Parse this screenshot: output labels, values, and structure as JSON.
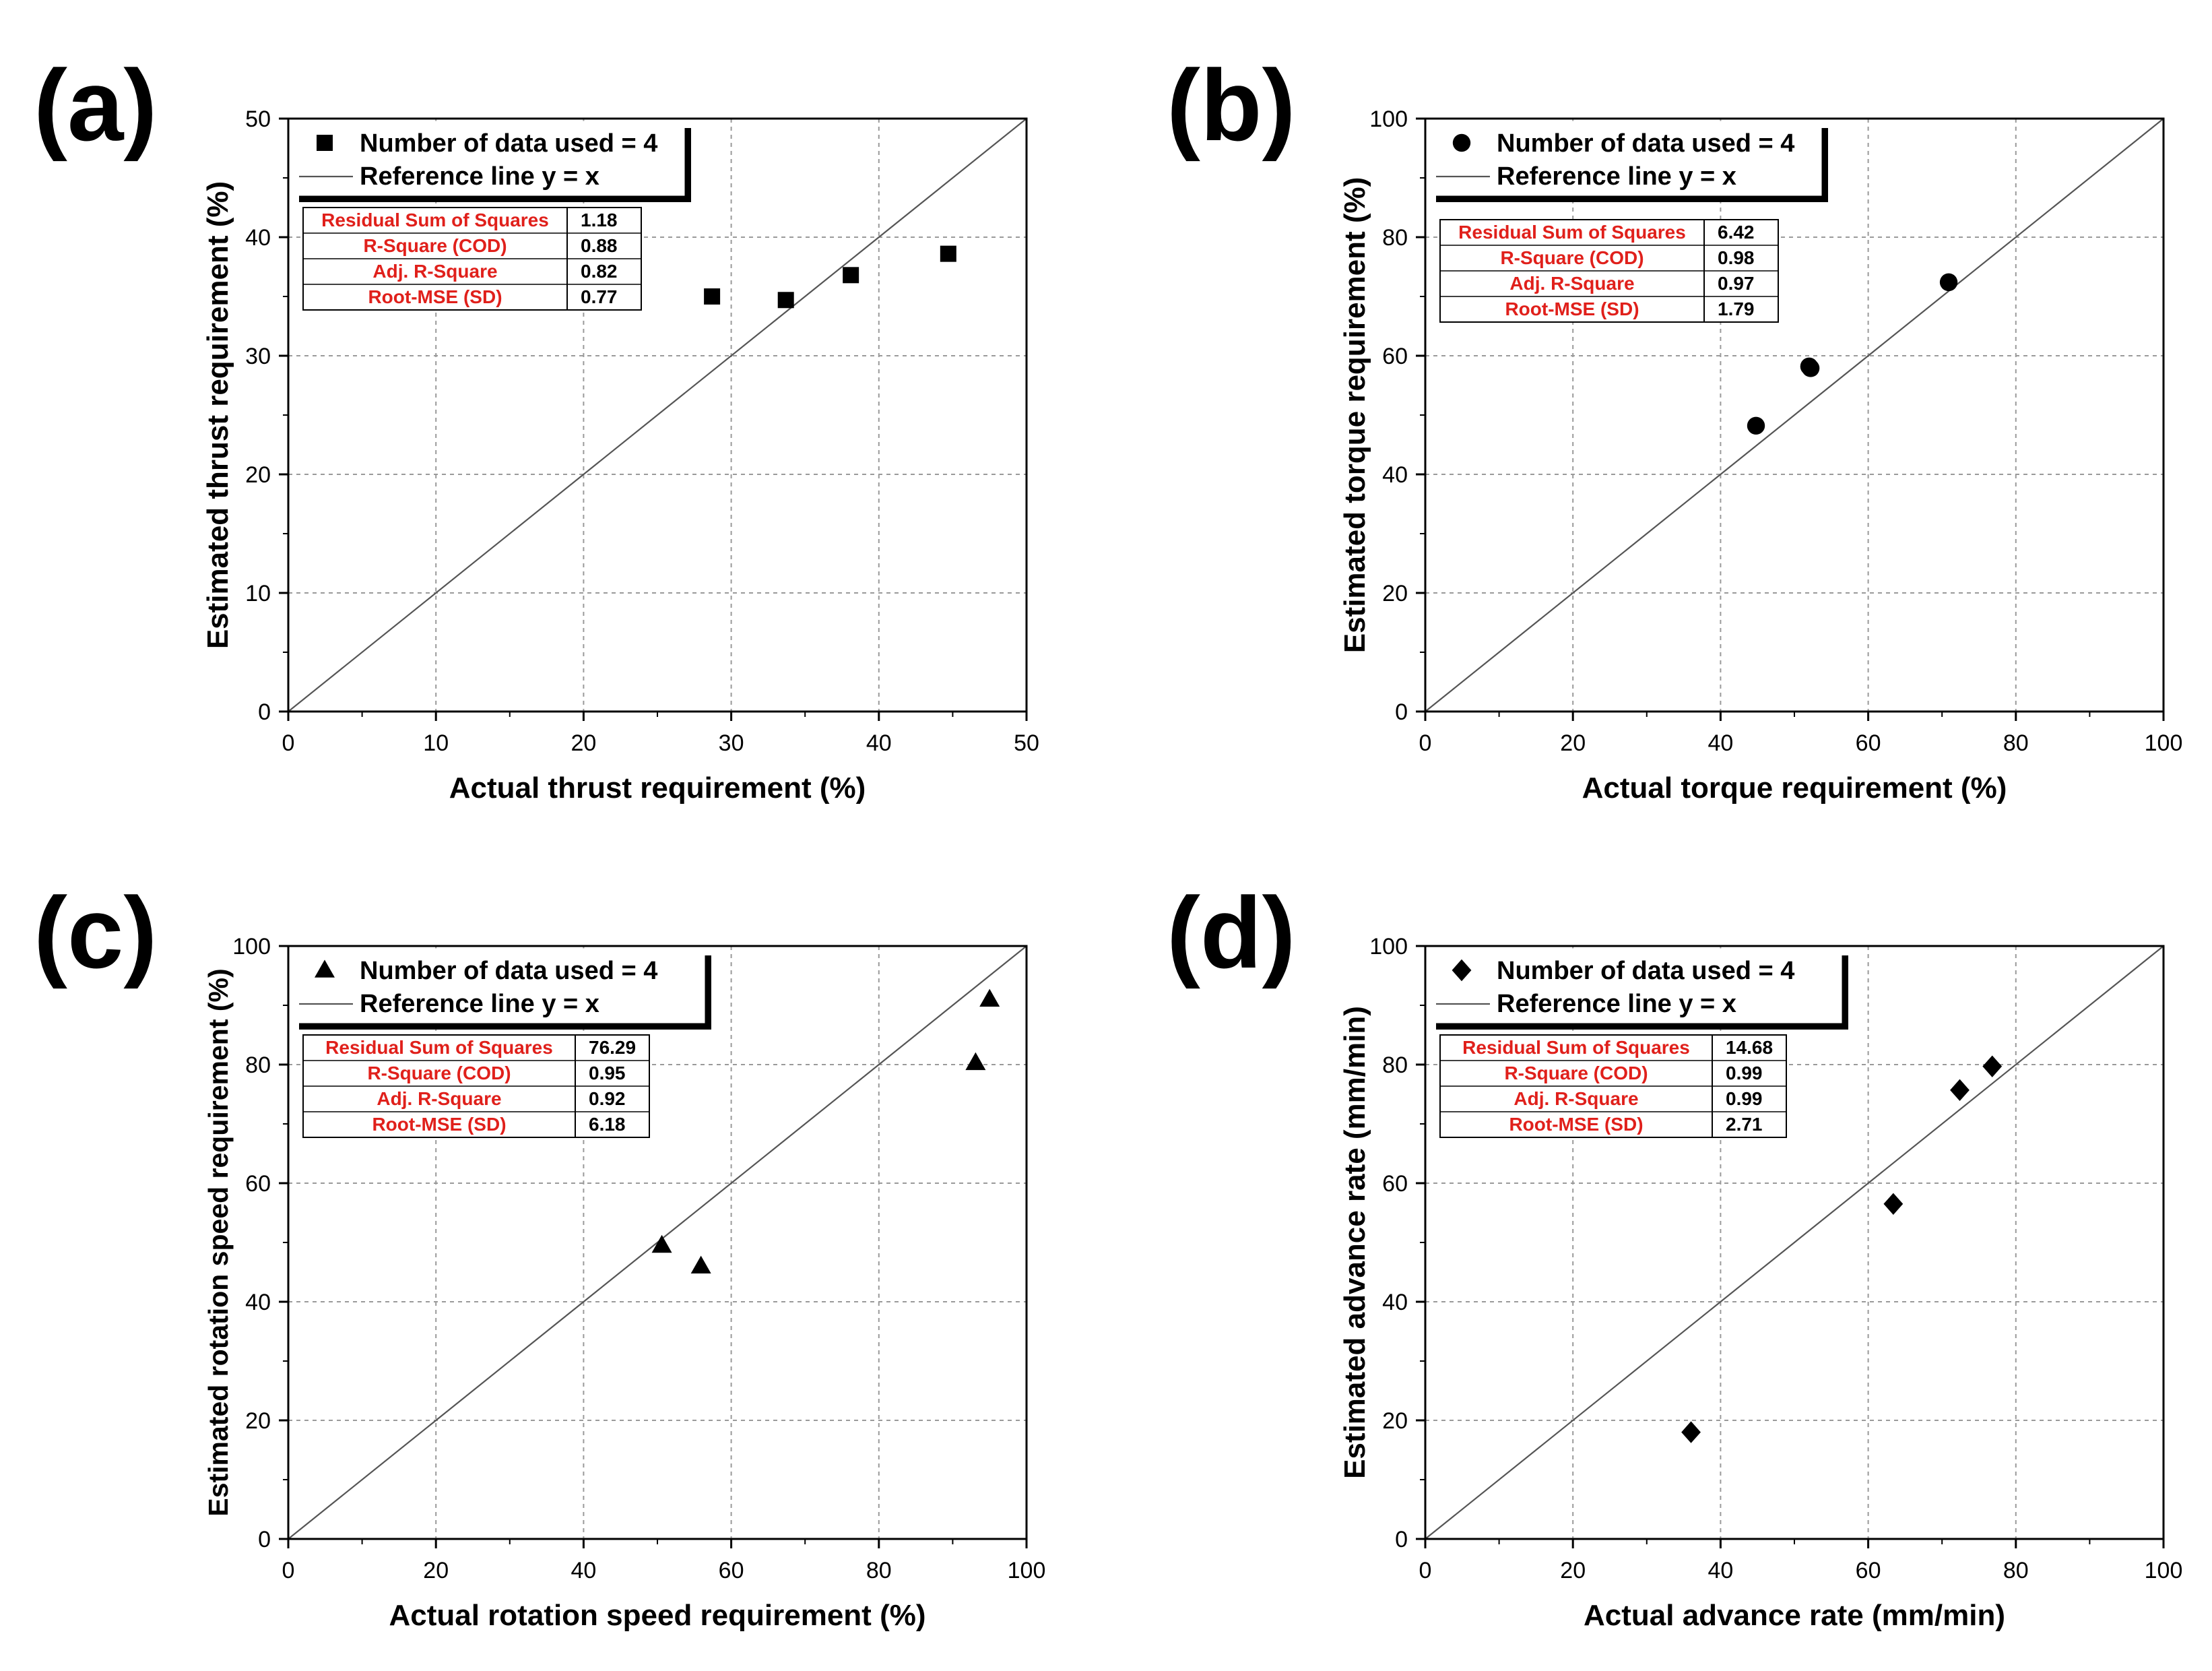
{
  "colors": {
    "axis": "#000000",
    "grid": "#9a9a9a",
    "stat_name": "#e0201b",
    "marker": "#000000",
    "reference": "#555555"
  },
  "chart_data": [
    {
      "panel": "(a)",
      "type": "scatter",
      "marker": "square",
      "xlabel": "Actual thrust requirement (%)",
      "ylabel": "Estimated thrust requirement (%)",
      "xlim": [
        0,
        50
      ],
      "ylim": [
        0,
        50
      ],
      "xticks": [
        "0",
        "10",
        "20",
        "30",
        "40",
        "50"
      ],
      "yticks": [
        "0",
        "10",
        "20",
        "30",
        "40",
        "50"
      ],
      "grid": true,
      "legend": {
        "series_label": "Number of data used = 4",
        "line_label": "Reference line y = x"
      },
      "points": [
        {
          "x": 28.7,
          "y": 35.0
        },
        {
          "x": 33.7,
          "y": 34.7
        },
        {
          "x": 38.1,
          "y": 36.8
        },
        {
          "x": 44.7,
          "y": 38.6
        }
      ],
      "stats": [
        {
          "name": "Residual Sum of Squares",
          "value": "1.18"
        },
        {
          "name": "R-Square (COD)",
          "value": "0.88"
        },
        {
          "name": "Adj. R-Square",
          "value": "0.82"
        },
        {
          "name": "Root-MSE (SD)",
          "value": "0.77"
        }
      ]
    },
    {
      "panel": "(b)",
      "type": "scatter",
      "marker": "circle",
      "xlabel": "Actual torque requirement (%)",
      "ylabel": "Estimated torque requirement (%)",
      "xlim": [
        0,
        100
      ],
      "ylim": [
        0,
        100
      ],
      "xticks": [
        "0",
        "20",
        "40",
        "60",
        "80",
        "100"
      ],
      "yticks": [
        "0",
        "20",
        "40",
        "60",
        "80",
        "100"
      ],
      "grid": true,
      "legend": {
        "series_label": "Number of data used = 4",
        "line_label": "Reference line y = x"
      },
      "points": [
        {
          "x": 44.8,
          "y": 48.2
        },
        {
          "x": 52.2,
          "y": 57.9
        },
        {
          "x": 70.9,
          "y": 72.4
        },
        {
          "x": 52.0,
          "y": 58.2
        }
      ],
      "stats": [
        {
          "name": "Residual Sum of Squares",
          "value": "6.42"
        },
        {
          "name": "R-Square (COD)",
          "value": "0.98"
        },
        {
          "name": "Adj. R-Square",
          "value": "0.97"
        },
        {
          "name": "Root-MSE (SD)",
          "value": "1.79"
        }
      ]
    },
    {
      "panel": "(c)",
      "type": "scatter",
      "marker": "triangle",
      "xlabel": "Actual rotation speed requirement (%)",
      "ylabel": "Estimated rotation speed requirement (%)",
      "xlim": [
        0,
        100
      ],
      "ylim": [
        0,
        100
      ],
      "xticks": [
        "0",
        "20",
        "40",
        "60",
        "80",
        "100"
      ],
      "yticks": [
        "0",
        "20",
        "40",
        "60",
        "80",
        "100"
      ],
      "grid": true,
      "legend": {
        "series_label": "Number of data used = 4",
        "line_label": "Reference line y = x"
      },
      "points": [
        {
          "x": 50.6,
          "y": 49.5
        },
        {
          "x": 55.9,
          "y": 46.0
        },
        {
          "x": 93.1,
          "y": 80.3
        },
        {
          "x": 95.0,
          "y": 91.0
        }
      ],
      "stats": [
        {
          "name": "Residual Sum of Squares",
          "value": "76.29"
        },
        {
          "name": "R-Square (COD)",
          "value": "0.95"
        },
        {
          "name": "Adj. R-Square",
          "value": "0.92"
        },
        {
          "name": "Root-MSE (SD)",
          "value": "6.18"
        }
      ]
    },
    {
      "panel": "(d)",
      "type": "scatter",
      "marker": "diamond",
      "xlabel": "Actual advance rate (mm/min)",
      "ylabel": "Estimated advance rate (mm/min)",
      "xlim": [
        0,
        100
      ],
      "ylim": [
        0,
        100
      ],
      "xticks": [
        "0",
        "20",
        "40",
        "60",
        "80",
        "100"
      ],
      "yticks": [
        "0",
        "20",
        "40",
        "60",
        "80",
        "100"
      ],
      "grid": true,
      "legend": {
        "series_label": "Number of data used = 4",
        "line_label": "Reference line y = x"
      },
      "points": [
        {
          "x": 36.0,
          "y": 18.0
        },
        {
          "x": 63.4,
          "y": 56.5
        },
        {
          "x": 72.4,
          "y": 75.7
        },
        {
          "x": 76.8,
          "y": 79.7
        }
      ],
      "stats": [
        {
          "name": "Residual Sum of Squares",
          "value": "14.68"
        },
        {
          "name": "R-Square (COD)",
          "value": "0.99"
        },
        {
          "name": "Adj. R-Square",
          "value": "0.99"
        },
        {
          "name": "Root-MSE (SD)",
          "value": "2.71"
        }
      ]
    }
  ]
}
